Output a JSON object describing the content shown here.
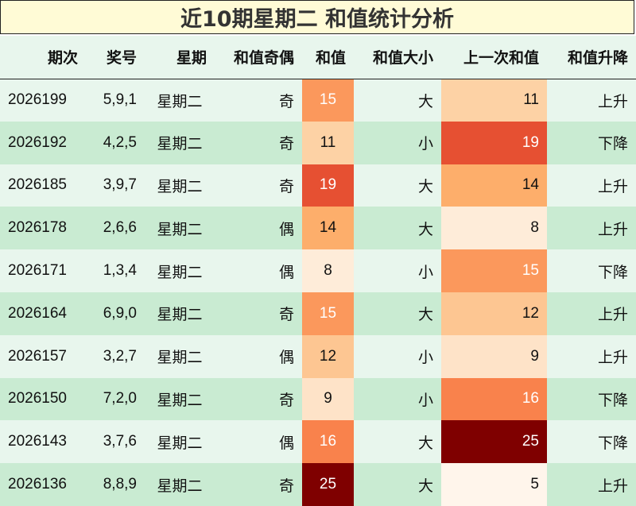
{
  "title": "近10期星期二 和值统计分析",
  "colors": {
    "header_bg": "#e8f6ed",
    "row_light": "#e8f6ed",
    "row_dark": "#c9ebd2",
    "title_bg": "#fffbd6"
  },
  "headers": [
    "期次",
    "奖号",
    "星期",
    "和值奇偶",
    "和值",
    "和值大小",
    "上一次和值",
    "和值升降"
  ],
  "rows": [
    {
      "issue": "2026199",
      "award": "5,9,1",
      "week": "星期二",
      "parity": "奇",
      "sum": "15",
      "size": "大",
      "prev": "11",
      "trend": "上升"
    },
    {
      "issue": "2026192",
      "award": "4,2,5",
      "week": "星期二",
      "parity": "奇",
      "sum": "11",
      "size": "小",
      "prev": "19",
      "trend": "下降"
    },
    {
      "issue": "2026185",
      "award": "3,9,7",
      "week": "星期二",
      "parity": "奇",
      "sum": "19",
      "size": "大",
      "prev": "14",
      "trend": "上升"
    },
    {
      "issue": "2026178",
      "award": "2,6,6",
      "week": "星期二",
      "parity": "偶",
      "sum": "14",
      "size": "大",
      "prev": "8",
      "trend": "上升"
    },
    {
      "issue": "2026171",
      "award": "1,3,4",
      "week": "星期二",
      "parity": "偶",
      "sum": "8",
      "size": "小",
      "prev": "15",
      "trend": "下降"
    },
    {
      "issue": "2026164",
      "award": "6,9,0",
      "week": "星期二",
      "parity": "奇",
      "sum": "15",
      "size": "大",
      "prev": "12",
      "trend": "上升"
    },
    {
      "issue": "2026157",
      "award": "3,2,7",
      "week": "星期二",
      "parity": "偶",
      "sum": "12",
      "size": "小",
      "prev": "9",
      "trend": "上升"
    },
    {
      "issue": "2026150",
      "award": "7,2,0",
      "week": "星期二",
      "parity": "奇",
      "sum": "9",
      "size": "小",
      "prev": "16",
      "trend": "下降"
    },
    {
      "issue": "2026143",
      "award": "3,7,6",
      "week": "星期二",
      "parity": "偶",
      "sum": "16",
      "size": "大",
      "prev": "25",
      "trend": "下降"
    },
    {
      "issue": "2026136",
      "award": "8,8,9",
      "week": "星期二",
      "parity": "奇",
      "sum": "25",
      "size": "大",
      "prev": "5",
      "trend": "上升"
    }
  ]
}
